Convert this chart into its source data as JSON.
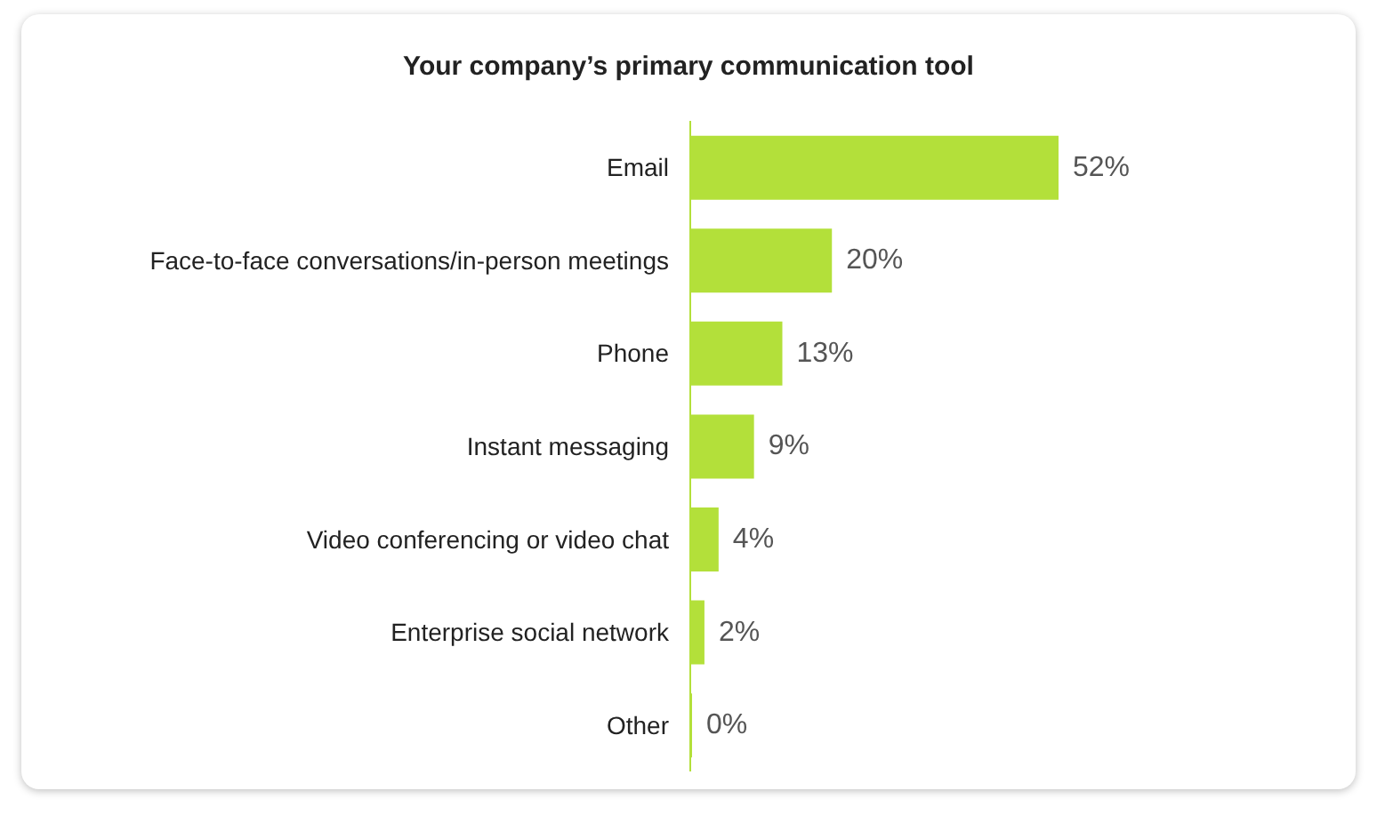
{
  "chart_data": {
    "type": "bar",
    "orientation": "horizontal",
    "title": "Your company’s primary communication tool",
    "categories": [
      "Email",
      "Face-to-face conversations/in-person meetings",
      "Phone",
      "Instant messaging",
      "Video conferencing or video chat",
      "Enterprise social network",
      "Other"
    ],
    "values": [
      52,
      20,
      13,
      9,
      4,
      2,
      0
    ],
    "value_labels": [
      "52%",
      "20%",
      "13%",
      "9%",
      "4%",
      "2%",
      "0%"
    ],
    "color": "#b3e03a",
    "grid": false
  }
}
